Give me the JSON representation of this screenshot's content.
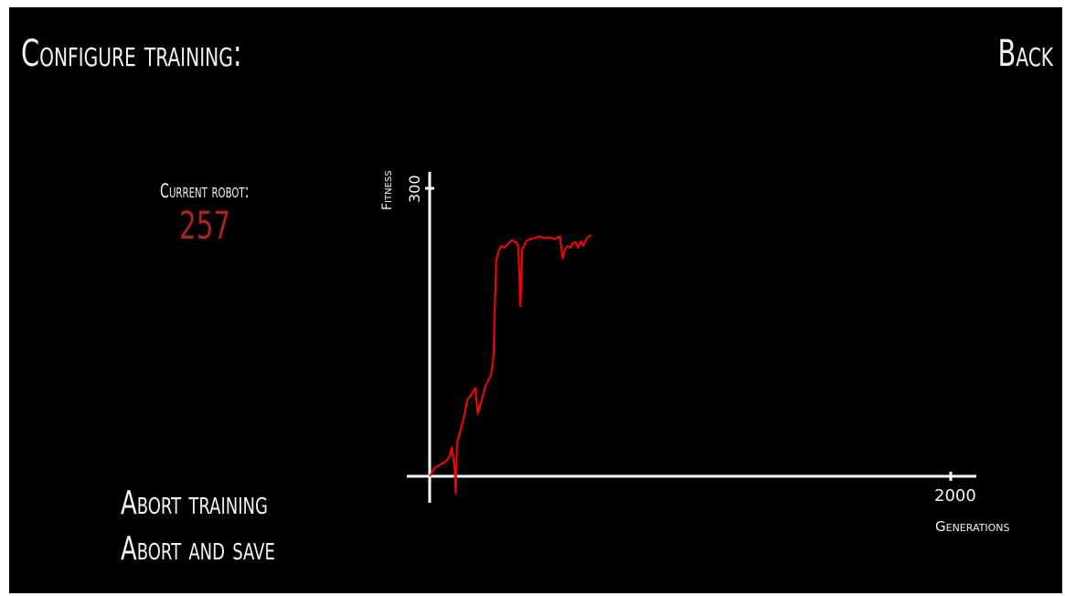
{
  "header": {
    "title": "Configure training:",
    "back_label": "Back"
  },
  "robot": {
    "label": "Current robot:",
    "value": "257"
  },
  "actions": {
    "abort_training": "Abort training",
    "abort_and_save": "Abort and save"
  },
  "colors": {
    "background": "#000000",
    "text": "#f2f2f2",
    "robot_value": "#a8241f",
    "series": "#ff0000",
    "axis": "#ffffff"
  },
  "chart_data": {
    "type": "line",
    "xlabel": "Generations",
    "ylabel": "Fitness",
    "xlim": [
      0,
      2000
    ],
    "ylim": [
      0,
      300
    ],
    "x_ticks": [
      "2000"
    ],
    "y_ticks": [
      "300"
    ],
    "grid": false,
    "series": [
      {
        "color": "#ff0000",
        "points": [
          [
            0,
            0
          ],
          [
            10,
            5
          ],
          [
            20,
            9
          ],
          [
            40,
            12
          ],
          [
            60,
            15
          ],
          [
            75,
            20
          ],
          [
            85,
            30
          ],
          [
            95,
            10
          ],
          [
            100,
            -18
          ],
          [
            105,
            35
          ],
          [
            115,
            45
          ],
          [
            130,
            60
          ],
          [
            145,
            80
          ],
          [
            160,
            85
          ],
          [
            175,
            92
          ],
          [
            185,
            65
          ],
          [
            200,
            80
          ],
          [
            215,
            95
          ],
          [
            225,
            100
          ],
          [
            235,
            105
          ],
          [
            245,
            125
          ],
          [
            255,
            225
          ],
          [
            265,
            235
          ],
          [
            275,
            240
          ],
          [
            285,
            238
          ],
          [
            300,
            242
          ],
          [
            315,
            246
          ],
          [
            330,
            244
          ],
          [
            340,
            240
          ],
          [
            348,
            177
          ],
          [
            355,
            236
          ],
          [
            370,
            245
          ],
          [
            385,
            247
          ],
          [
            400,
            248
          ],
          [
            420,
            250
          ],
          [
            440,
            248
          ],
          [
            460,
            249
          ],
          [
            480,
            247
          ],
          [
            500,
            250
          ],
          [
            510,
            227
          ],
          [
            520,
            237
          ],
          [
            530,
            240
          ],
          [
            540,
            238
          ],
          [
            550,
            243
          ],
          [
            560,
            244
          ],
          [
            570,
            238
          ],
          [
            580,
            245
          ],
          [
            590,
            240
          ],
          [
            600,
            247
          ],
          [
            610,
            250
          ],
          [
            620,
            251
          ]
        ]
      }
    ]
  }
}
